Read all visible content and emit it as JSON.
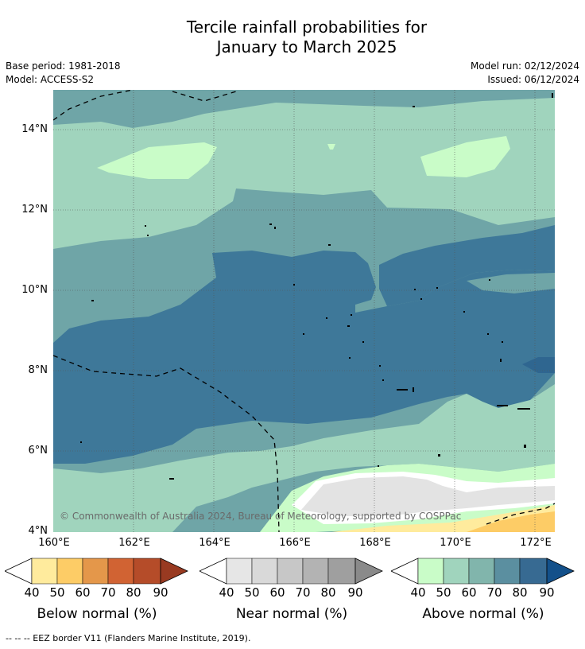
{
  "title_line1": "Tercile rainfall probabilities for",
  "title_line2": "January to March 2025",
  "meta": {
    "base_period": "Base period: 1981-2018",
    "model": "Model: ACCESS-S2",
    "model_run": "Model run: 02/12/2024",
    "issued": "Issued: 06/12/2024"
  },
  "map": {
    "copyright": "© Commonwealth of Australia 2024, Bureau of Meteorology, supported by COSPPac",
    "lat_labels": [
      "14°N",
      "12°N",
      "10°N",
      "8°N",
      "6°N",
      "4°N"
    ],
    "lon_labels": [
      "160°E",
      "162°E",
      "164°E",
      "166°E",
      "168°E",
      "170°E",
      "172°E"
    ],
    "lat_range": [
      4,
      15
    ],
    "lon_range": [
      160,
      172.5
    ],
    "colors": {
      "above_50_60": "#a0d4bd",
      "above_60_70": "#6fa5a7",
      "above_70_80": "#3e7899",
      "above_80_90": "#2f6690",
      "above_40_50": "#c9fcc8",
      "near_50_60": "#e3e3e3",
      "below_40_50": "#ffeb9d",
      "below_50_60": "#fdcc66"
    }
  },
  "legends": [
    {
      "title": "Below normal (%)",
      "ticks": [
        "40",
        "50",
        "60",
        "70",
        "80",
        "90"
      ],
      "colors": [
        "#ffeb9d",
        "#fdcc66",
        "#e4974a",
        "#d16333",
        "#b54c29",
        "#993a21"
      ]
    },
    {
      "title": "Near normal (%)",
      "ticks": [
        "40",
        "50",
        "60",
        "70",
        "80",
        "90"
      ],
      "colors": [
        "#e6e6e6",
        "#d9d9d9",
        "#c7c7c7",
        "#b3b3b3",
        "#9f9f9f",
        "#8a8a8a"
      ]
    },
    {
      "title": "Above normal (%)",
      "ticks": [
        "40",
        "50",
        "60",
        "70",
        "80",
        "90"
      ],
      "colors": [
        "#c9fcc8",
        "#a0d4bd",
        "#81b5ac",
        "#5b8fa0",
        "#376a92",
        "#13508a"
      ]
    }
  ],
  "eez_note": "--  --  -- EEZ border V11 (Flanders Marine Institute, 2019)."
}
